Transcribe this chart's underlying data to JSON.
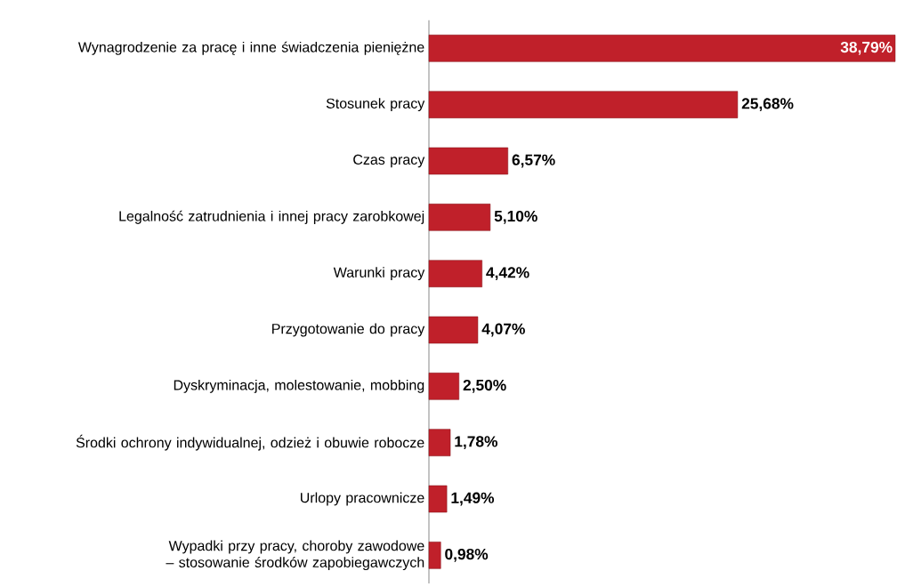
{
  "chart_data": {
    "type": "bar",
    "orientation": "horizontal",
    "categories": [
      "Wynagrodzenie za pracę i inne świadczenia pieniężne",
      "Stosunek pracy",
      "Czas pracy",
      "Legalność zatrudnienia i innej pracy zarobkowej",
      "Warunki pracy",
      "Przygotowanie do pracy",
      "Dyskryminacja, molestowanie, mobbing",
      "Środki ochrony indywidualnej, odzież i obuwie robocze",
      "Urlopy pracownicze",
      "Wypadki przy pracy, choroby zawodowe – stosowanie środków zapobiegawczych"
    ],
    "values": [
      38.79,
      25.68,
      6.57,
      5.1,
      4.42,
      4.07,
      2.5,
      1.78,
      1.49,
      0.98
    ],
    "value_labels": [
      "38,79%",
      "25,68%",
      "6,57%",
      "5,10%",
      "4,42%",
      "4,07%",
      "2,50%",
      "1,78%",
      "1,49%",
      "0,98%"
    ],
    "color": "#c0202a"
  }
}
